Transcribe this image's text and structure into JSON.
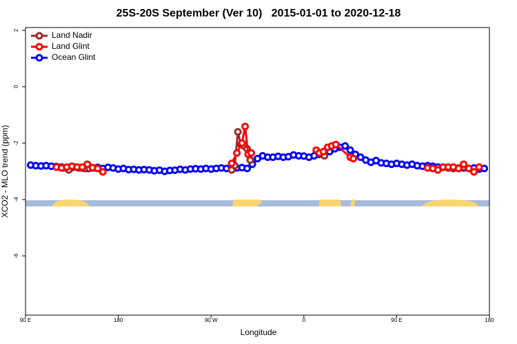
{
  "chart_data": {
    "type": "line",
    "title": "25S-20S September (Ver 10)   2015-01-01 to 2020-12-18",
    "x_label": "Longitude",
    "y_label": "XCO2 - MLO trend (ppm)",
    "xlim": [
      90,
      540
    ],
    "ylim": [
      -8.1,
      2.1
    ],
    "xticks": [
      {
        "value": 90,
        "label": "90 E"
      },
      {
        "value": 180,
        "label": "180"
      },
      {
        "value": 270,
        "label": "90 W"
      },
      {
        "value": 360,
        "label": "0"
      },
      {
        "value": 450,
        "label": "90 E"
      },
      {
        "value": 540,
        "label": "180"
      }
    ],
    "yticks": [
      -6,
      -4,
      -2,
      0,
      2
    ],
    "legend": "top-left",
    "series": [
      {
        "name": "Ocean Glint",
        "color": "#0000ff",
        "x": [
          95,
          100,
          105,
          110,
          115,
          120,
          125,
          130,
          135,
          140,
          145,
          150,
          155,
          160,
          165,
          170,
          175,
          180,
          185,
          190,
          195,
          200,
          205,
          210,
          215,
          220,
          225,
          230,
          235,
          240,
          245,
          250,
          255,
          260,
          265,
          270,
          275,
          280,
          285,
          290,
          295,
          300,
          305,
          310,
          315,
          320,
          325,
          330,
          335,
          340,
          345,
          350,
          355,
          360,
          365,
          370,
          375,
          380,
          385,
          390,
          395,
          400,
          405,
          410,
          415,
          420,
          425,
          430,
          435,
          440,
          445,
          450,
          455,
          460,
          465,
          470,
          475,
          480,
          485,
          490,
          495,
          500,
          505,
          510,
          515,
          520,
          525,
          530,
          535
        ],
        "values": [
          -2.78,
          -2.8,
          -2.81,
          -2.8,
          -2.82,
          -2.83,
          -2.85,
          -2.86,
          -2.87,
          -2.86,
          -2.88,
          -2.9,
          -2.88,
          -2.86,
          -2.9,
          -2.86,
          -2.88,
          -2.92,
          -2.9,
          -2.94,
          -2.93,
          -2.95,
          -2.94,
          -2.95,
          -2.98,
          -2.96,
          -3.0,
          -2.97,
          -2.96,
          -2.93,
          -2.95,
          -2.92,
          -2.91,
          -2.92,
          -2.9,
          -2.92,
          -2.9,
          -2.88,
          -2.9,
          -2.88,
          -2.88,
          -2.87,
          -2.9,
          -2.75,
          -2.55,
          -2.45,
          -2.5,
          -2.5,
          -2.47,
          -2.5,
          -2.48,
          -2.42,
          -2.45,
          -2.46,
          -2.5,
          -2.45,
          -2.4,
          -2.35,
          -2.3,
          -2.2,
          -2.15,
          -2.1,
          -2.25,
          -2.4,
          -2.5,
          -2.6,
          -2.68,
          -2.62,
          -2.7,
          -2.72,
          -2.75,
          -2.72,
          -2.75,
          -2.78,
          -2.75,
          -2.8,
          -2.82,
          -2.8,
          -2.82,
          -2.85,
          -2.86,
          -2.88,
          -2.9,
          -2.9,
          -2.88,
          -2.9,
          -2.88,
          -2.92,
          -2.9
        ]
      },
      {
        "name": "Land Nadir",
        "color": "#9b2a2a",
        "x": [
          122,
          127,
          132,
          137,
          142,
          147,
          152,
          157,
          240,
          290,
          293,
          296,
          299,
          302,
          305,
          308,
          360,
          378,
          380,
          450,
          485,
          490,
          495,
          500,
          505,
          510,
          515
        ],
        "values": [
          -2.85,
          -2.88,
          -2.95,
          -2.85,
          -2.88,
          -2.9,
          -2.9,
          -2.88,
          null,
          -2.95,
          -2.8,
          -1.6,
          -2.05,
          -2.1,
          -2.2,
          -2.6,
          null,
          -2.4,
          -2.45,
          null,
          -2.9,
          -2.95,
          -2.85,
          -2.88,
          -2.9,
          -2.88,
          -2.85
        ]
      },
      {
        "name": "Land Glint",
        "color": "#ff0000",
        "x": [
          120,
          125,
          130,
          135,
          140,
          145,
          150,
          155,
          160,
          165,
          230,
          290,
          295,
          300,
          303,
          306,
          309,
          340,
          372,
          375,
          379,
          383,
          387,
          391,
          405,
          408,
          450,
          480,
          485,
          490,
          495,
          500,
          505,
          510,
          515,
          520,
          525,
          530
        ],
        "values": [
          -2.85,
          -2.88,
          -2.85,
          -2.82,
          -2.85,
          -2.85,
          -2.75,
          -2.87,
          -2.9,
          -3.02,
          null,
          -2.72,
          -2.35,
          -2.0,
          -1.41,
          -2.4,
          -2.35,
          null,
          -2.25,
          -2.35,
          -2.3,
          -2.15,
          -2.1,
          -2.05,
          -2.5,
          -2.55,
          null,
          -2.88,
          -2.9,
          -2.95,
          -2.85,
          -2.85,
          -2.85,
          -2.9,
          -2.75,
          -2.9,
          -3.02,
          -2.85
        ]
      }
    ]
  }
}
